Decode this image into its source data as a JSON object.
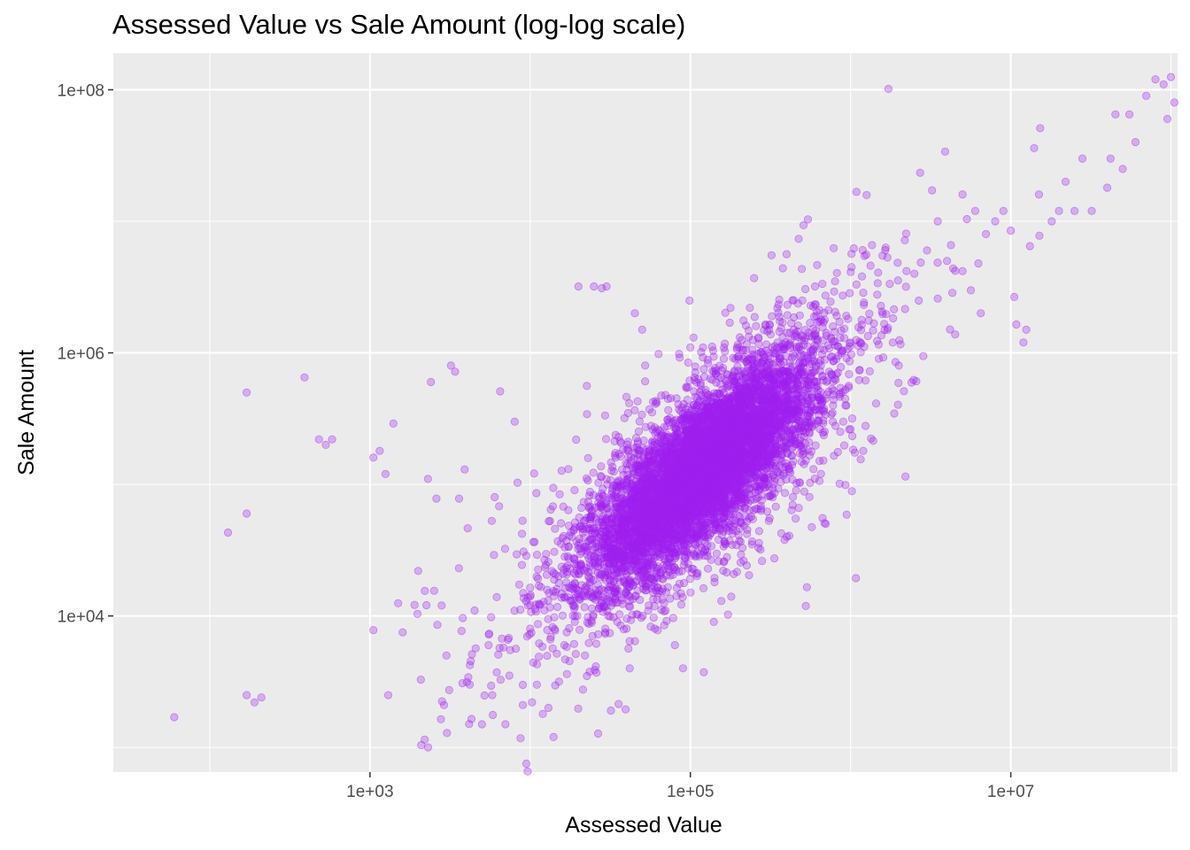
{
  "chart_data": {
    "type": "scatter",
    "title": "Assessed Value vs Sale Amount (log-log scale)",
    "xlabel": "Assessed Value",
    "ylabel": "Sale Amount",
    "x_scale": "log10",
    "y_scale": "log10",
    "xlim": [
      25,
      110000000
    ],
    "ylim": [
      650,
      190000000
    ],
    "x_ticks": [
      {
        "value": 1000,
        "label": "1e+03"
      },
      {
        "value": 100000,
        "label": "1e+05"
      },
      {
        "value": 10000000,
        "label": "1e+07"
      }
    ],
    "y_ticks": [
      {
        "value": 10000,
        "label": "1e+04"
      },
      {
        "value": 1000000,
        "label": "1e+06"
      },
      {
        "value": 100000000,
        "label": "1e+08"
      }
    ],
    "grid": true,
    "legend": "none",
    "point_color": "#A020F0",
    "panel_background": "#EBEBEB",
    "series": [
      {
        "points": [
          [
            60,
            1700
          ],
          [
            130,
            43000
          ],
          [
            170,
            500000
          ],
          [
            170,
            60000
          ],
          [
            170,
            2500
          ],
          [
            190,
            2200
          ],
          [
            210,
            2400
          ],
          [
            390,
            650000
          ],
          [
            480,
            220000
          ],
          [
            530,
            200000
          ],
          [
            580,
            220000
          ],
          [
            1050,
            7800
          ],
          [
            1050,
            160000
          ],
          [
            1150,
            180000
          ],
          [
            1250,
            120000
          ],
          [
            1300,
            2500
          ],
          [
            1400,
            290000
          ],
          [
            1500,
            12500
          ],
          [
            1600,
            7500
          ],
          [
            2000,
            22000
          ],
          [
            2200,
            15500
          ],
          [
            2300,
            110000
          ],
          [
            2400,
            600000
          ],
          [
            2600,
            78000
          ],
          [
            2800,
            12000
          ],
          [
            2900,
            2100
          ],
          [
            3000,
            5000
          ],
          [
            3200,
            800000
          ],
          [
            3400,
            720000
          ],
          [
            3600,
            78000
          ],
          [
            3900,
            130000
          ],
          [
            4200,
            3000
          ],
          [
            4500,
            11000
          ],
          [
            5000,
            1500
          ],
          [
            5500,
            6000
          ],
          [
            5800,
            2500
          ],
          [
            6000,
            80000
          ],
          [
            6500,
            510000
          ],
          [
            7000,
            1500
          ],
          [
            7500,
            5500
          ],
          [
            8000,
            300000
          ],
          [
            9000,
            2100
          ],
          [
            10000,
            8000
          ],
          [
            11000,
            3000
          ],
          [
            12000,
            1800
          ],
          [
            13000,
            2000
          ],
          [
            14000,
            1200
          ],
          [
            15000,
            20000
          ],
          [
            17000,
            14000
          ],
          [
            19000,
            9000
          ],
          [
            20000,
            3200000
          ],
          [
            22000,
            5000
          ],
          [
            25000,
            3200000
          ],
          [
            28000,
            3100000
          ],
          [
            30000,
            3200000
          ],
          [
            35000,
            9000
          ],
          [
            40000,
            8000
          ],
          [
            45000,
            2000000
          ],
          [
            50000,
            1500000
          ],
          [
            55000,
            12000
          ],
          [
            60000,
            8000
          ],
          [
            70000,
            11000
          ],
          [
            80000,
            6000
          ],
          [
            90000,
            4000
          ],
          [
            100000,
            1100000
          ],
          [
            120000,
            1100000
          ],
          [
            140000,
            9000
          ],
          [
            180000,
            14000
          ],
          [
            200000,
            900000
          ],
          [
            250000,
            3700000
          ],
          [
            300000,
            300000
          ],
          [
            350000,
            1200000
          ],
          [
            400000,
            40000
          ],
          [
            500000,
            2500000
          ],
          [
            600000,
            3200000
          ],
          [
            700000,
            50000
          ],
          [
            800000,
            3500000
          ],
          [
            900000,
            300000
          ],
          [
            1000000,
            1200000
          ],
          [
            1200000,
            180000
          ],
          [
            1500000,
            900000
          ],
          [
            1700000,
            5300000
          ],
          [
            2000000,
            800000
          ],
          [
            2500000,
            4000000
          ],
          [
            3000000,
            6000000
          ],
          [
            3500000,
            10000000
          ],
          [
            4000000,
            5000000
          ],
          [
            4500000,
            4200000
          ],
          [
            5000000,
            16000000
          ],
          [
            6000000,
            12000000
          ],
          [
            6500000,
            2000000
          ],
          [
            7000000,
            8000000
          ],
          [
            8000000,
            10000000
          ],
          [
            9000000,
            12000000
          ],
          [
            10000000,
            8500000
          ],
          [
            12000000,
            1200000
          ],
          [
            12500000,
            1500000
          ],
          [
            14000000,
            36000000
          ],
          [
            15000000,
            16000000
          ],
          [
            18000000,
            10000000
          ],
          [
            20000000,
            12000000
          ],
          [
            22000000,
            20000000
          ],
          [
            25000000,
            12000000
          ],
          [
            28000000,
            30000000
          ],
          [
            32000000,
            12000000
          ],
          [
            40000000,
            18000000
          ],
          [
            42000000,
            30000000
          ],
          [
            45000000,
            65000000
          ],
          [
            50000000,
            25000000
          ],
          [
            55000000,
            65000000
          ],
          [
            60000000,
            40000000
          ],
          [
            70000000,
            90000000
          ],
          [
            80000000,
            120000000
          ],
          [
            90000000,
            110000000
          ],
          [
            95000000,
            60000000
          ],
          [
            100000000,
            125000000
          ],
          [
            105000000,
            80000000
          ]
        ],
        "cluster": {
          "center": [
            120000,
            130000
          ],
          "spread_log": [
            0.35,
            0.27
          ],
          "slope": 0.95,
          "count": 6500
        },
        "spread": {
          "center": [
            120000,
            120000
          ],
          "spread_log": [
            0.7,
            0.55
          ],
          "slope": 0.9,
          "count": 900
        }
      }
    ]
  }
}
